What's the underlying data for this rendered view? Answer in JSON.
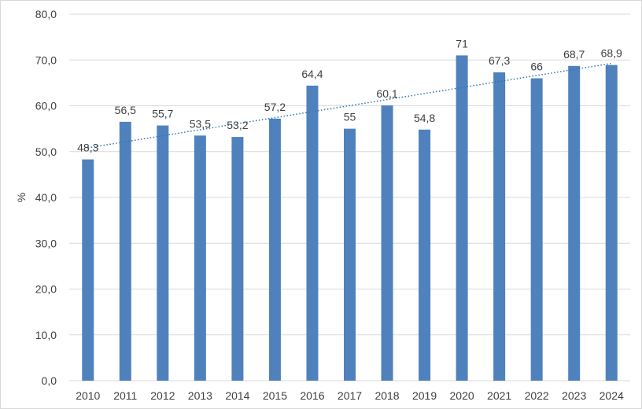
{
  "chart_data": {
    "type": "bar",
    "title": "",
    "xlabel": "",
    "ylabel": "%",
    "ylim": [
      0,
      80
    ],
    "yticks": [
      "0,0",
      "10,0",
      "20,0",
      "30,0",
      "40,0",
      "50,0",
      "60,0",
      "70,0",
      "80,0"
    ],
    "ytick_values": [
      0,
      10,
      20,
      30,
      40,
      50,
      60,
      70,
      80
    ],
    "grid": "horizontal",
    "legend": "none",
    "categories": [
      "2010",
      "2011",
      "2012",
      "2013",
      "2014",
      "2015",
      "2016",
      "2017",
      "2018",
      "2019",
      "2020",
      "2021",
      "2022",
      "2023",
      "2024"
    ],
    "values": [
      48.3,
      56.5,
      55.7,
      53.5,
      53.2,
      57.2,
      64.4,
      55,
      60.1,
      54.8,
      71,
      67.3,
      66,
      68.7,
      68.9
    ],
    "data_labels": [
      "48,3",
      "56,5",
      "55,7",
      "53,5",
      "53,2",
      "57,2",
      "64,4",
      "55",
      "60,1",
      "54,8",
      "71",
      "67,3",
      "66",
      "68,7",
      "68,9"
    ],
    "trendline": {
      "type": "linear",
      "style": "dotted",
      "color": "#2e75b6"
    },
    "colors": {
      "bar": "#4f81bd",
      "grid": "#d9d9d9",
      "text": "#404040"
    }
  }
}
